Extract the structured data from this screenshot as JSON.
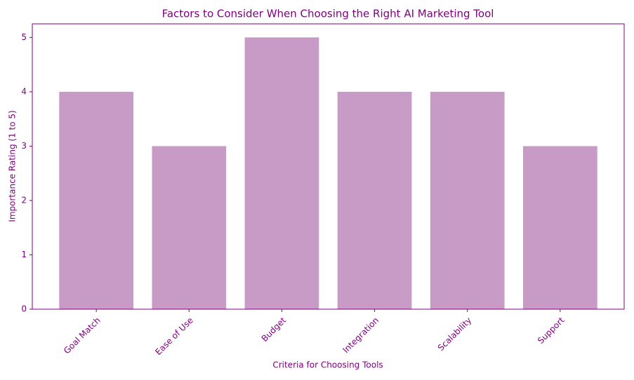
{
  "chart_data": {
    "type": "bar",
    "title": "Factors to Consider When Choosing the Right AI Marketing Tool",
    "x_label": "Criteria for Choosing Tools",
    "y_label": "Importance Rating (1 to 5)",
    "categories": [
      "Goal Match",
      "Ease of Use",
      "Budget",
      "Integration",
      "Scalability",
      "Support"
    ],
    "values": [
      4,
      3,
      5,
      4,
      4,
      3
    ],
    "color": "#c89bc7",
    "text_color": "#800080",
    "ylim": [
      0,
      5.25
    ],
    "yticks": [
      0,
      1,
      2,
      3,
      4,
      5
    ],
    "grid": false
  }
}
